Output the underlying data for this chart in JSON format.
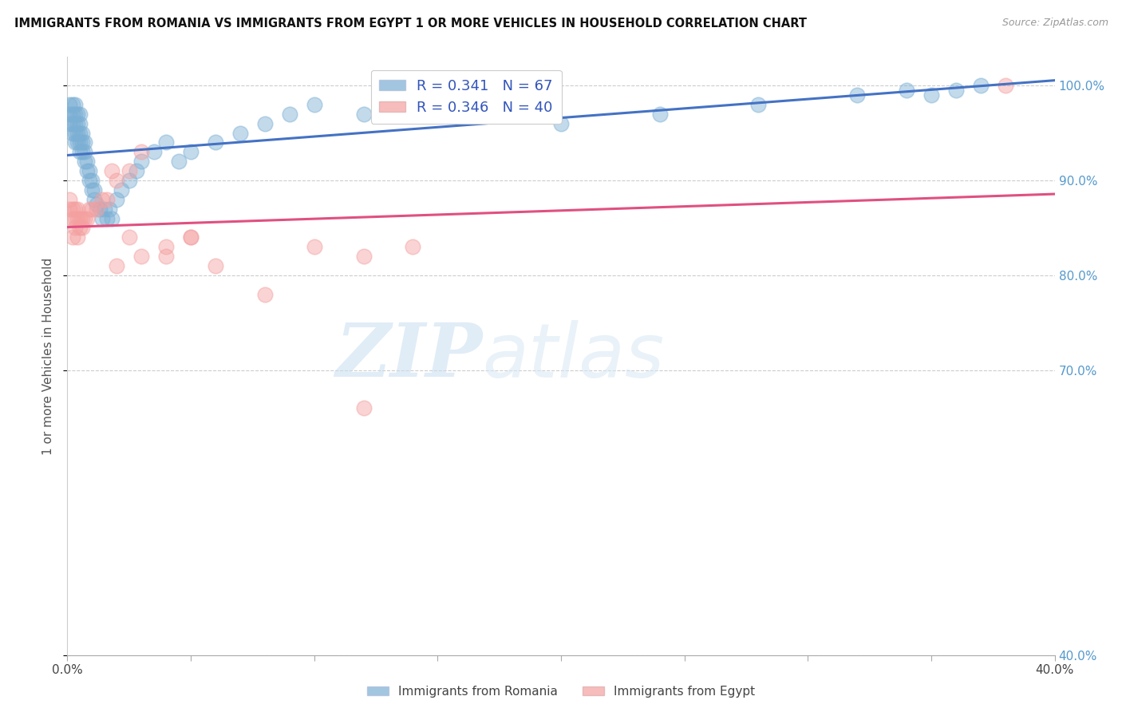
{
  "title": "IMMIGRANTS FROM ROMANIA VS IMMIGRANTS FROM EGYPT 1 OR MORE VEHICLES IN HOUSEHOLD CORRELATION CHART",
  "source": "Source: ZipAtlas.com",
  "ylabel": "1 or more Vehicles in Household",
  "xlim": [
    0.0,
    0.4
  ],
  "ylim": [
    0.4,
    1.03
  ],
  "R_romania": 0.341,
  "N_romania": 67,
  "R_egypt": 0.346,
  "N_egypt": 40,
  "romania_color": "#7BAFD4",
  "egypt_color": "#F4A0A0",
  "romania_line_color": "#4472C4",
  "egypt_line_color": "#E05080",
  "watermark_zip": "ZIP",
  "watermark_atlas": "atlas",
  "romania_x": [
    0.001,
    0.001,
    0.001,
    0.002,
    0.002,
    0.002,
    0.002,
    0.003,
    0.003,
    0.003,
    0.003,
    0.003,
    0.004,
    0.004,
    0.004,
    0.004,
    0.005,
    0.005,
    0.005,
    0.005,
    0.005,
    0.006,
    0.006,
    0.006,
    0.007,
    0.007,
    0.007,
    0.008,
    0.008,
    0.009,
    0.009,
    0.01,
    0.01,
    0.011,
    0.011,
    0.012,
    0.013,
    0.014,
    0.015,
    0.016,
    0.017,
    0.018,
    0.02,
    0.022,
    0.025,
    0.028,
    0.03,
    0.035,
    0.04,
    0.045,
    0.05,
    0.06,
    0.07,
    0.08,
    0.09,
    0.1,
    0.12,
    0.14,
    0.16,
    0.2,
    0.24,
    0.28,
    0.32,
    0.34,
    0.35,
    0.36,
    0.37
  ],
  "romania_y": [
    0.96,
    0.97,
    0.98,
    0.95,
    0.96,
    0.97,
    0.98,
    0.94,
    0.95,
    0.96,
    0.97,
    0.98,
    0.94,
    0.95,
    0.96,
    0.97,
    0.93,
    0.94,
    0.95,
    0.96,
    0.97,
    0.93,
    0.94,
    0.95,
    0.92,
    0.93,
    0.94,
    0.91,
    0.92,
    0.9,
    0.91,
    0.89,
    0.9,
    0.88,
    0.89,
    0.875,
    0.87,
    0.86,
    0.87,
    0.86,
    0.87,
    0.86,
    0.88,
    0.89,
    0.9,
    0.91,
    0.92,
    0.93,
    0.94,
    0.92,
    0.93,
    0.94,
    0.95,
    0.96,
    0.97,
    0.98,
    0.97,
    0.98,
    0.97,
    0.96,
    0.97,
    0.98,
    0.99,
    0.995,
    0.99,
    0.995,
    1.0
  ],
  "egypt_x": [
    0.001,
    0.001,
    0.002,
    0.002,
    0.002,
    0.003,
    0.003,
    0.003,
    0.004,
    0.004,
    0.004,
    0.005,
    0.005,
    0.006,
    0.006,
    0.007,
    0.008,
    0.009,
    0.01,
    0.012,
    0.014,
    0.016,
    0.018,
    0.02,
    0.025,
    0.03,
    0.04,
    0.05,
    0.06,
    0.08,
    0.1,
    0.12,
    0.14,
    0.02,
    0.025,
    0.03,
    0.04,
    0.05,
    0.12,
    0.38
  ],
  "egypt_y": [
    0.87,
    0.88,
    0.84,
    0.86,
    0.87,
    0.85,
    0.86,
    0.87,
    0.84,
    0.86,
    0.87,
    0.85,
    0.86,
    0.85,
    0.86,
    0.86,
    0.86,
    0.87,
    0.87,
    0.87,
    0.88,
    0.88,
    0.91,
    0.9,
    0.91,
    0.93,
    0.82,
    0.84,
    0.81,
    0.78,
    0.83,
    0.82,
    0.83,
    0.81,
    0.84,
    0.82,
    0.83,
    0.84,
    0.66,
    1.0
  ],
  "ytick_vals": [
    0.4,
    0.7,
    0.8,
    0.9,
    1.0
  ],
  "ytick_labels": [
    "40.0%",
    "70.0%",
    "80.0%",
    "90.0%",
    "100.0%"
  ],
  "xtick_vals": [
    0.0,
    0.05,
    0.1,
    0.15,
    0.2,
    0.25,
    0.3,
    0.35,
    0.4
  ],
  "xtick_labels": [
    "0.0%",
    "",
    "",
    "",
    "",
    "",
    "",
    "",
    "40.0%"
  ]
}
